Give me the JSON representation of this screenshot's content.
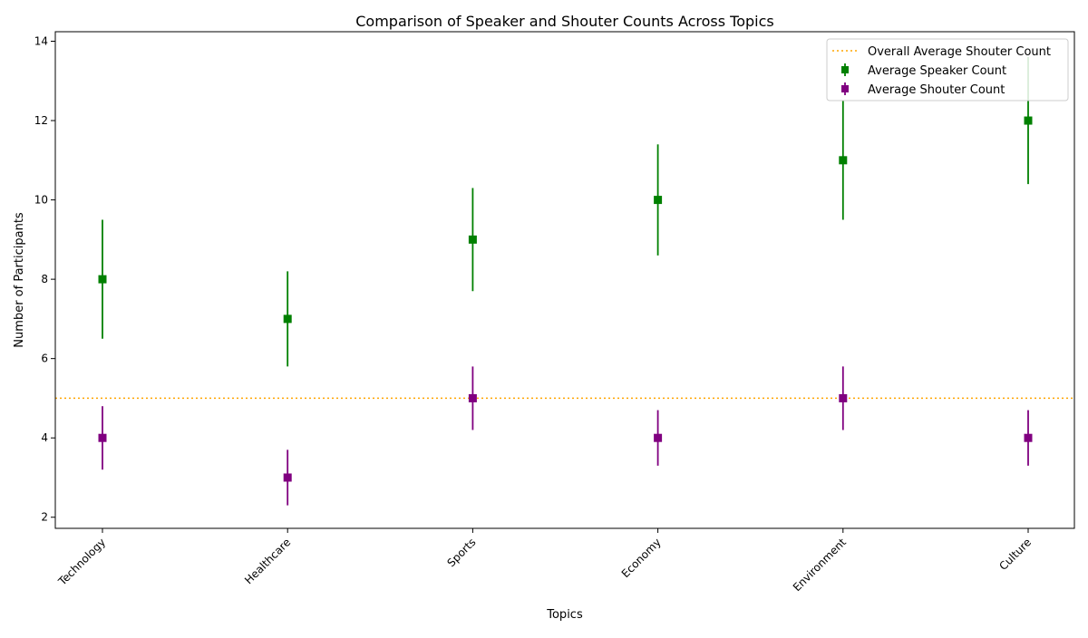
{
  "chart_data": {
    "type": "errorbar",
    "title": "Comparison of Speaker and Shouter Counts Across Topics",
    "xlabel": "Topics",
    "ylabel": "Number of Participants",
    "categories": [
      "Technology",
      "Healthcare",
      "Sports",
      "Economy",
      "Environment",
      "Culture"
    ],
    "ylim": [
      1.72,
      14.24
    ],
    "yticks": [
      2,
      4,
      6,
      8,
      10,
      12,
      14
    ],
    "grid": false,
    "legend_position": "top-right",
    "series": [
      {
        "name": "Average Speaker Count",
        "color": "#008000",
        "marker": "square",
        "values": [
          8,
          7,
          9,
          10,
          11,
          12
        ],
        "errors": [
          1.5,
          1.2,
          1.3,
          1.4,
          1.5,
          1.6
        ]
      },
      {
        "name": "Average Shouter Count",
        "color": "#800080",
        "marker": "square",
        "values": [
          4,
          3,
          5,
          4,
          5,
          4
        ],
        "errors": [
          0.8,
          0.7,
          0.8,
          0.7,
          0.8,
          0.7
        ]
      }
    ],
    "reference_line": {
      "name": "Overall Average Shouter Count",
      "value": 5,
      "color": "#FFA500",
      "style": "dotted"
    }
  }
}
